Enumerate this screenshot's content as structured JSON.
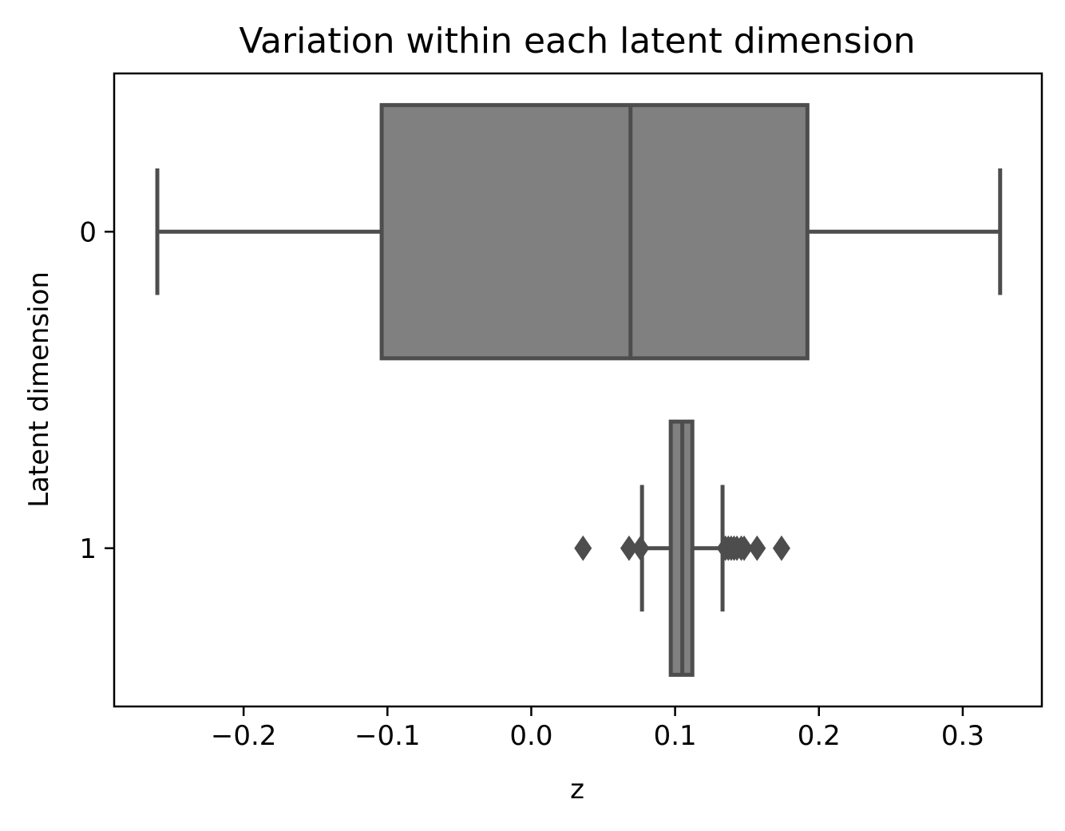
{
  "chart_data": {
    "type": "box",
    "orientation": "horizontal",
    "title": "Variation within each latent dimension",
    "xlabel": "z",
    "ylabel": "Latent dimension",
    "xlim": [
      -0.29,
      0.355
    ],
    "x_ticks": [
      -0.2,
      -0.1,
      0.0,
      0.1,
      0.2,
      0.3
    ],
    "x_tick_labels": [
      "−0.2",
      "−0.1",
      "0.0",
      "0.1",
      "0.2",
      "0.3"
    ],
    "categories": [
      "0",
      "1"
    ],
    "grid": false,
    "box_fill": "#808080",
    "line_color": "#4d4d4d",
    "boxes": [
      {
        "category": "0",
        "whisker_low": -0.26,
        "q1": -0.104,
        "median": 0.069,
        "q3": 0.192,
        "whisker_high": 0.326,
        "outliers": []
      },
      {
        "category": "1",
        "whisker_low": 0.077,
        "q1": 0.097,
        "median": 0.105,
        "q3": 0.112,
        "whisker_high": 0.133,
        "outliers": [
          0.036,
          0.068,
          0.076,
          0.135,
          0.137,
          0.139,
          0.141,
          0.143,
          0.146,
          0.148,
          0.157,
          0.174
        ]
      }
    ]
  }
}
